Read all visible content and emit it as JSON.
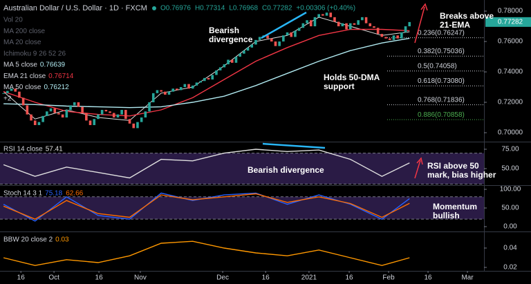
{
  "chart_data": [
    {
      "type": "candlestick",
      "title": "Australian Dollar / U.S. Dollar · 1D · FXCM",
      "ohlc": [
        "O0.76976",
        "H0.77314",
        "L0.76968",
        "C0.77282",
        "+0.00306 (+0.40%)"
      ],
      "hidden_indicators": [
        "Vol 20",
        "MA 200 close",
        "MA 20 close",
        "Ichimoku 9 26 52 26"
      ],
      "collapsed": "+2",
      "colors": {
        "up": "#26a69a",
        "down": "#ef5350"
      },
      "closes": [
        0.726,
        0.7275,
        0.729,
        0.727,
        0.723,
        0.718,
        0.712,
        0.708,
        0.705,
        0.707,
        0.711,
        0.714,
        0.716,
        0.713,
        0.712,
        0.71,
        0.715,
        0.718,
        0.72,
        0.717,
        0.713,
        0.708,
        0.705,
        0.709,
        0.712,
        0.715,
        0.714,
        0.713,
        0.71,
        0.712,
        0.715,
        0.709,
        0.706,
        0.703,
        0.707,
        0.71,
        0.714,
        0.72,
        0.726,
        0.728,
        0.727,
        0.725,
        0.727,
        0.729,
        0.728,
        0.73,
        0.732,
        0.729,
        0.731,
        0.733,
        0.734,
        0.736,
        0.735,
        0.738,
        0.741,
        0.743,
        0.745,
        0.748,
        0.746,
        0.75,
        0.752,
        0.754,
        0.756,
        0.758,
        0.761,
        0.763,
        0.764,
        0.762,
        0.76,
        0.757,
        0.76,
        0.764,
        0.766,
        0.763,
        0.767,
        0.769,
        0.772,
        0.774,
        0.77,
        0.776,
        0.778,
        0.777,
        0.779,
        0.776,
        0.773,
        0.77,
        0.772,
        0.768,
        0.772,
        0.771,
        0.774,
        0.776,
        0.772,
        0.77,
        0.769,
        0.765,
        0.763,
        0.762,
        0.761,
        0.764,
        0.762,
        0.766,
        0.77,
        0.7728
      ],
      "series": [
        {
          "name": "MA 5 close",
          "last": 0.76639,
          "color": "#e0e0e0",
          "x": [
            0,
            8,
            16,
            24,
            32,
            40,
            48,
            56,
            64,
            72,
            80,
            88,
            96,
            103
          ],
          "values": [
            0.727,
            0.709,
            0.715,
            0.71,
            0.708,
            0.726,
            0.73,
            0.744,
            0.76,
            0.764,
            0.776,
            0.77,
            0.764,
            0.7664
          ]
        },
        {
          "name": "EMA 21 close",
          "last": 0.76714,
          "color": "#f23645",
          "x": [
            0,
            8,
            16,
            24,
            32,
            40,
            48,
            56,
            64,
            72,
            80,
            88,
            96,
            103
          ],
          "values": [
            0.727,
            0.72,
            0.714,
            0.712,
            0.711,
            0.715,
            0.723,
            0.735,
            0.747,
            0.756,
            0.764,
            0.768,
            0.768,
            0.7671
          ]
        },
        {
          "name": "MA 50 close",
          "last": 0.76212,
          "color": "#b2ebf2",
          "x": [
            0,
            8,
            16,
            24,
            32,
            40,
            48,
            56,
            64,
            72,
            80,
            88,
            96,
            103
          ],
          "values": [
            0.719,
            0.7185,
            0.7175,
            0.717,
            0.7165,
            0.717,
            0.72,
            0.724,
            0.731,
            0.739,
            0.747,
            0.754,
            0.759,
            0.7621
          ]
        }
      ],
      "fib": [
        {
          "label": "0.236(0.76247)",
          "value": 0.76247,
          "color": "#d1d4dc"
        },
        {
          "label": "0.382(0.75036)",
          "value": 0.75036,
          "color": "#d1d4dc"
        },
        {
          "label": "0.5(0.74058)",
          "value": 0.74058,
          "color": "#d1d4dc"
        },
        {
          "label": "0.618(0.73080)",
          "value": 0.7308,
          "color": "#d1d4dc"
        },
        {
          "label": "0.768(0.71836)",
          "value": 0.71836,
          "color": "#d1d4dc"
        },
        {
          "label": "0.886(0.70858)",
          "value": 0.70858,
          "color": "#4caf50"
        }
      ],
      "annotations": [
        "Bearish\ndivergence",
        "Holds 50-DMA\nsupport",
        "Breaks above\n21-EMA"
      ],
      "xlim": [
        -0.9,
        121.9
      ],
      "ylim": [
        0.6941,
        0.7873
      ],
      "yticks": [
        {
          "value": 0.78,
          "label": "0.78000"
        },
        {
          "value": 0.76,
          "label": "0.76000"
        },
        {
          "value": 0.74,
          "label": "0.74000"
        },
        {
          "value": 0.72,
          "label": "0.72000"
        },
        {
          "value": 0.7,
          "label": "0.70000"
        }
      ],
      "last_price": {
        "value": 0.77282,
        "label": "0.77282"
      }
    },
    {
      "type": "line",
      "title": "RSI 14 close",
      "bands": [
        30,
        70
      ],
      "series": [
        {
          "last": 57.41,
          "color": "#e0e0e0",
          "x": [
            0,
            8,
            16,
            24,
            32,
            40,
            48,
            56,
            64,
            72,
            80,
            88,
            96,
            103
          ],
          "values": [
            55,
            40,
            52,
            45,
            38,
            62,
            60,
            70,
            75,
            72,
            74,
            62,
            40,
            57.41
          ]
        }
      ],
      "annotations": [
        "Bearish divergence",
        "RSI above 50\nmark, bias higher"
      ],
      "xlim": [
        -0.9,
        121.9
      ],
      "ylim": [
        28.6,
        83.9
      ],
      "yticks": [
        {
          "value": 75,
          "label": "75.00"
        },
        {
          "value": 50,
          "label": "50.00"
        }
      ]
    },
    {
      "type": "line",
      "title": "Stoch 14 3 1",
      "bands": [
        20,
        80
      ],
      "series": [
        {
          "last": 75.18,
          "color": "#2962ff",
          "x": [
            0,
            8,
            16,
            24,
            32,
            40,
            48,
            56,
            64,
            72,
            80,
            88,
            96,
            103
          ],
          "values": [
            60,
            15,
            80,
            30,
            20,
            90,
            70,
            85,
            90,
            60,
            85,
            60,
            20,
            75.18
          ]
        },
        {
          "last": 62.66,
          "color": "#ff6d00",
          "x": [
            0,
            8,
            16,
            24,
            32,
            40,
            48,
            56,
            64,
            72,
            80,
            88,
            96,
            103
          ],
          "values": [
            55,
            20,
            70,
            35,
            25,
            85,
            72,
            80,
            88,
            65,
            80,
            62,
            25,
            62.66
          ]
        }
      ],
      "annotations": [
        "Momentum\nbullish"
      ],
      "xlim": [
        -0.9,
        121.9
      ],
      "ylim": [
        -13,
        107.4
      ],
      "yticks": [
        {
          "value": 100,
          "label": "100.00"
        },
        {
          "value": 50,
          "label": "50.00"
        },
        {
          "value": 0,
          "label": "0.00"
        }
      ]
    },
    {
      "type": "line",
      "title": "BBW 20 close 2",
      "series": [
        {
          "last": 0.03,
          "color": "#ff9800",
          "x": [
            0,
            8,
            16,
            24,
            32,
            40,
            48,
            56,
            64,
            72,
            80,
            88,
            96,
            103
          ],
          "values": [
            0.03,
            0.022,
            0.028,
            0.025,
            0.032,
            0.045,
            0.047,
            0.04,
            0.035,
            0.032,
            0.038,
            0.03,
            0.022,
            0.03
          ]
        }
      ],
      "xlim": [
        -0.9,
        121.9
      ],
      "ylim": [
        0.0164,
        0.0557
      ],
      "yticks": [
        0.04,
        0.02
      ],
      "xticks": [
        {
          "value": 4.4,
          "label": "16"
        },
        {
          "value": 12.8,
          "label": "Oct"
        },
        {
          "value": 24.2,
          "label": "16"
        },
        {
          "value": 34.7,
          "label": "Nov"
        },
        {
          "value": 55.6,
          "label": "Dec"
        },
        {
          "value": 66.5,
          "label": "16"
        },
        {
          "value": 77.5,
          "label": "2021"
        },
        {
          "value": 87.7,
          "label": "16"
        },
        {
          "value": 97.7,
          "label": "Feb"
        },
        {
          "value": 107.7,
          "label": "16"
        },
        {
          "value": 117.7,
          "label": "Mar"
        }
      ]
    }
  ]
}
